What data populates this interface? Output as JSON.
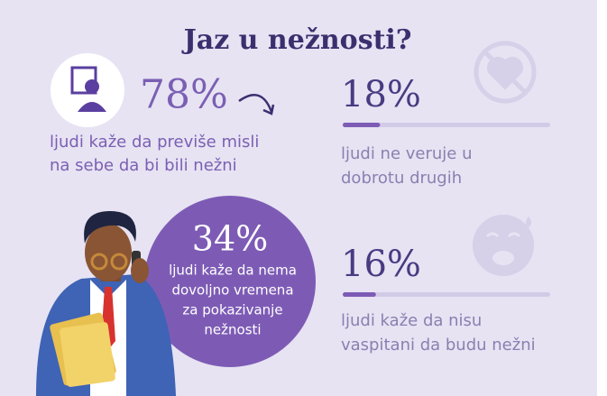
{
  "title": "Jaz u nežnosti?",
  "stats": [
    {
      "label": "78%",
      "lines": [
        "ljudi kaže da previše misli",
        "na sebe da bi bili nežni"
      ]
    },
    {
      "value": 18,
      "value_label": "18%",
      "lines": [
        "ljudi ne veruje u",
        "dobrotu drugih"
      ]
    },
    {
      "label": "34%",
      "lines": [
        "ljudi kaže da nema",
        "dovoljno vremena",
        "za pokazivanje",
        "nežnosti"
      ]
    },
    {
      "value": 16,
      "value_label": "16%",
      "lines": [
        "ljudi kaže da nisu",
        "vaspitani da budu nežni"
      ]
    }
  ]
}
